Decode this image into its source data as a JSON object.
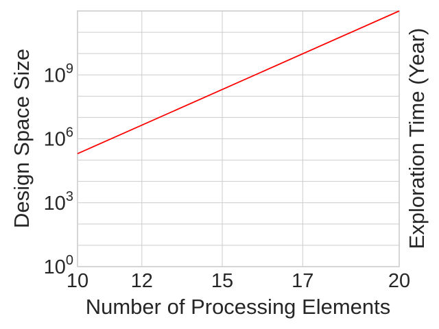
{
  "chart_data": {
    "type": "line",
    "title": "",
    "xlabel": "Number of Processing Elements",
    "ylabel": "Design Space Size",
    "y2label": "Exploration Time (Year)",
    "x_ticks": [
      {
        "value": 10,
        "label": "10"
      },
      {
        "value": 12,
        "label": "12"
      },
      {
        "value": 14.5,
        "label": "15"
      },
      {
        "value": 17,
        "label": "17"
      },
      {
        "value": 20,
        "label": "20"
      }
    ],
    "y_ticks": [
      {
        "exp": 0,
        "base": "10",
        "sup": "0"
      },
      {
        "exp": 3,
        "base": "10",
        "sup": "3"
      },
      {
        "exp": 6,
        "base": "10",
        "sup": "6"
      },
      {
        "exp": 9,
        "base": "10",
        "sup": "9"
      }
    ],
    "y_scale": "log",
    "xlim": [
      10,
      20
    ],
    "ylim": [
      1,
      1000000000000.0
    ],
    "grid": true,
    "series": [
      {
        "color": "#ff0000",
        "x": [
          10,
          20
        ],
        "y": [
          200000,
          1000000000000.0
        ]
      }
    ]
  }
}
